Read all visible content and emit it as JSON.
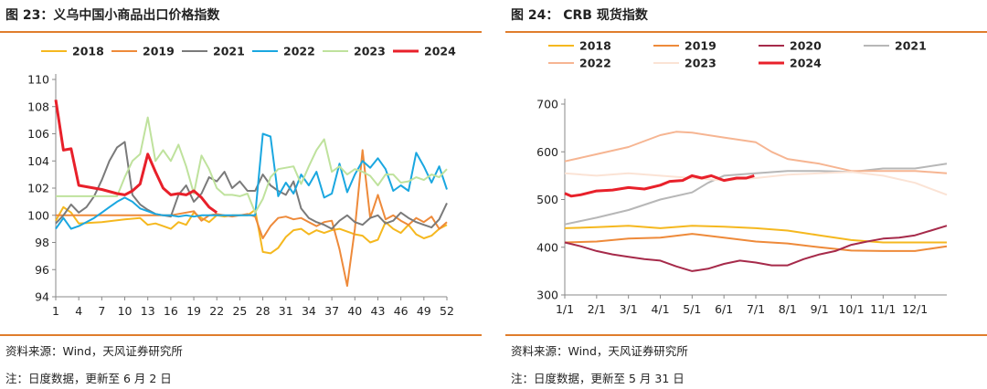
{
  "charts": [
    {
      "title": "图 23：义乌中国小商品出口价格指数",
      "source": "资料来源：Wind，天风证券研究所",
      "note": "注：日度数据，更新至 6 月 2 日"
    },
    {
      "title": "图 24： CRB 现货指数",
      "source": "资料来源：Wind，天风证券研究所",
      "note": "注：日度数据，更新至 5 月 31 日"
    }
  ],
  "chart_data": [
    {
      "type": "line",
      "title": "图 23：义乌中国小商品出口价格指数",
      "x_ticks": [
        1,
        4,
        7,
        10,
        13,
        16,
        19,
        22,
        25,
        28,
        31,
        34,
        37,
        40,
        43,
        46,
        49,
        52
      ],
      "xlim": [
        1,
        52
      ],
      "ylim": [
        94,
        110
      ],
      "y_ticks": [
        94,
        96,
        98,
        100,
        102,
        104,
        106,
        108,
        110
      ],
      "legend": "top",
      "grid": false,
      "series": [
        {
          "name": "2018",
          "color": "#f5b81f",
          "x": [
            1,
            2,
            3,
            4,
            7,
            10,
            12,
            13,
            14,
            15,
            16,
            17,
            18,
            19,
            20,
            21,
            22,
            23,
            24,
            25,
            26,
            27,
            28,
            29,
            30,
            31,
            32,
            33,
            34,
            35,
            36,
            37,
            38,
            39,
            40,
            41,
            42,
            43,
            44,
            45,
            46,
            47,
            48,
            49,
            50,
            51,
            52
          ],
          "y": [
            99.6,
            100.6,
            100.2,
            99.4,
            99.5,
            99.7,
            99.8,
            99.3,
            99.4,
            99.2,
            99.0,
            99.5,
            99.3,
            100.2,
            99.8,
            99.5,
            100.0,
            99.9,
            100.0,
            100.0,
            100.0,
            100.4,
            97.3,
            97.2,
            97.6,
            98.4,
            98.9,
            99.0,
            98.6,
            98.9,
            98.7,
            98.9,
            99.0,
            98.8,
            98.6,
            98.5,
            98.0,
            98.2,
            99.5,
            99.0,
            98.7,
            99.3,
            98.6,
            98.3,
            98.5,
            99.0,
            99.3
          ]
        },
        {
          "name": "2019",
          "color": "#ee8a3a",
          "x": [
            1,
            4,
            7,
            10,
            13,
            16,
            19,
            20,
            21,
            22,
            23,
            24,
            25,
            26,
            27,
            28,
            29,
            30,
            31,
            32,
            33,
            34,
            35,
            36,
            37,
            38,
            39,
            40,
            41,
            42,
            43,
            44,
            45,
            46,
            47,
            48,
            49,
            50,
            51,
            52
          ],
          "y": [
            100.0,
            100.0,
            100.0,
            100.0,
            100.0,
            100.0,
            100.3,
            99.6,
            100.0,
            100.1,
            100.0,
            99.9,
            100.0,
            100.1,
            99.9,
            98.3,
            99.2,
            99.8,
            99.9,
            99.7,
            99.8,
            99.5,
            99.2,
            99.5,
            99.6,
            97.5,
            94.8,
            99.0,
            104.8,
            99.8,
            101.5,
            99.7,
            100.0,
            99.6,
            99.3,
            99.8,
            99.5,
            99.9,
            99.0,
            99.5
          ]
        },
        {
          "name": "2021",
          "color": "#7a7a7a",
          "x": [
            1,
            2,
            3,
            4,
            5,
            6,
            7,
            8,
            9,
            10,
            11,
            12,
            13,
            14,
            15,
            16,
            17,
            18,
            19,
            20,
            21,
            22,
            23,
            24,
            25,
            26,
            27,
            28,
            29,
            30,
            31,
            32,
            33,
            34,
            35,
            36,
            37,
            38,
            39,
            40,
            41,
            42,
            43,
            44,
            45,
            46,
            47,
            48,
            49,
            50,
            51,
            52
          ],
          "y": [
            99.4,
            100.0,
            100.8,
            100.2,
            100.6,
            101.4,
            102.6,
            104.0,
            105.0,
            105.4,
            101.5,
            100.8,
            100.4,
            100.1,
            100.0,
            99.9,
            101.5,
            102.2,
            101.0,
            101.6,
            102.8,
            102.5,
            103.2,
            102.0,
            102.5,
            101.8,
            101.8,
            103.0,
            102.2,
            101.8,
            101.5,
            102.5,
            100.5,
            99.8,
            99.5,
            99.3,
            99.0,
            99.6,
            100.0,
            99.5,
            99.3,
            99.8,
            100.0,
            99.4,
            99.6,
            100.2,
            99.8,
            99.5,
            99.3,
            99.1,
            99.7,
            100.9
          ]
        },
        {
          "name": "2022",
          "color": "#1aa7e0",
          "x": [
            1,
            2,
            3,
            4,
            5,
            6,
            7,
            8,
            9,
            10,
            11,
            12,
            13,
            14,
            15,
            16,
            17,
            18,
            19,
            20,
            21,
            22,
            23,
            24,
            25,
            26,
            27,
            28,
            29,
            30,
            31,
            32,
            33,
            34,
            35,
            36,
            37,
            38,
            39,
            40,
            41,
            42,
            43,
            44,
            45,
            46,
            47,
            48,
            49,
            50,
            51,
            52
          ],
          "y": [
            99.0,
            99.8,
            99.0,
            99.2,
            99.5,
            99.8,
            100.2,
            100.6,
            101.0,
            101.3,
            101.0,
            100.5,
            100.3,
            100.1,
            100.0,
            100.0,
            99.9,
            100.0,
            99.9,
            100.0,
            100.0,
            100.0,
            100.0,
            100.0,
            100.0,
            100.0,
            100.0,
            106.0,
            105.8,
            101.4,
            102.4,
            101.6,
            103.0,
            102.2,
            103.2,
            101.3,
            101.6,
            103.8,
            101.7,
            103.0,
            104.0,
            103.5,
            104.2,
            103.4,
            101.8,
            102.2,
            101.8,
            104.6,
            103.6,
            102.4,
            103.6,
            101.9
          ]
        },
        {
          "name": "2023",
          "color": "#bfe29d",
          "x": [
            1,
            2,
            3,
            4,
            5,
            6,
            7,
            8,
            9,
            10,
            11,
            12,
            13,
            14,
            15,
            16,
            17,
            18,
            19,
            20,
            21,
            22,
            23,
            24,
            25,
            26,
            27,
            28,
            29,
            30,
            31,
            32,
            33,
            34,
            35,
            36,
            37,
            38,
            39,
            40,
            41,
            42,
            43,
            44,
            45,
            46,
            47,
            48,
            49,
            50,
            51,
            52
          ],
          "y": [
            101.4,
            101.4,
            101.4,
            101.4,
            101.4,
            101.4,
            101.4,
            101.4,
            101.4,
            102.8,
            104.0,
            104.5,
            107.2,
            104.0,
            104.8,
            104.0,
            105.2,
            103.6,
            101.6,
            104.4,
            103.4,
            102.0,
            101.5,
            101.5,
            101.4,
            101.6,
            100.2,
            101.2,
            102.8,
            103.4,
            103.5,
            103.6,
            102.3,
            103.6,
            104.8,
            105.6,
            103.2,
            103.6,
            103.0,
            103.4,
            103.2,
            102.9,
            102.2,
            103.0,
            103.0,
            102.4,
            102.5,
            102.8,
            102.6,
            103.0,
            102.8,
            103.4
          ]
        },
        {
          "name": "2024",
          "color": "#e8202a",
          "x": [
            1,
            2,
            3,
            4,
            5,
            7,
            9,
            10,
            11,
            12,
            13,
            14,
            15,
            16,
            17,
            18,
            19,
            20,
            21,
            22
          ],
          "y": [
            108.5,
            104.8,
            104.9,
            102.2,
            102.1,
            101.9,
            101.6,
            101.5,
            101.8,
            102.3,
            104.5,
            103.2,
            102.0,
            101.5,
            101.6,
            101.5,
            101.8,
            101.3,
            100.6,
            100.2
          ]
        }
      ]
    },
    {
      "type": "line",
      "title": "图 24： CRB 现货指数",
      "x_ticks": [
        "1/1",
        "2/1",
        "3/1",
        "4/1",
        "5/1",
        "6/1",
        "7/1",
        "8/1",
        "9/1",
        "10/1",
        "11/1",
        "12/1"
      ],
      "xlim": [
        0,
        12
      ],
      "ylim": [
        300,
        700
      ],
      "y_ticks": [
        300,
        400,
        500,
        600,
        700
      ],
      "legend": "top",
      "grid": false,
      "series": [
        {
          "name": "2018",
          "color": "#f5b81f",
          "x": [
            0,
            1,
            2,
            3,
            4,
            5,
            6,
            7,
            8,
            9,
            10,
            11,
            12
          ],
          "y": [
            440,
            442,
            445,
            440,
            445,
            443,
            440,
            435,
            425,
            415,
            410,
            410,
            410
          ]
        },
        {
          "name": "2019",
          "color": "#ee8a3a",
          "x": [
            0,
            1,
            2,
            3,
            4,
            5,
            6,
            7,
            8,
            9,
            10,
            11,
            12
          ],
          "y": [
            410,
            412,
            418,
            420,
            428,
            420,
            412,
            408,
            400,
            393,
            392,
            392,
            402
          ]
        },
        {
          "name": "2020",
          "color": "#a62a4a",
          "x": [
            0,
            0.5,
            1,
            1.5,
            2,
            2.5,
            3,
            3.5,
            4,
            4.5,
            5,
            5.5,
            6,
            6.5,
            7,
            7.5,
            8,
            8.5,
            9,
            9.5,
            10,
            10.5,
            11,
            11.5,
            12
          ],
          "y": [
            410,
            402,
            392,
            385,
            380,
            375,
            372,
            360,
            350,
            355,
            365,
            372,
            368,
            362,
            362,
            375,
            385,
            392,
            405,
            412,
            418,
            420,
            425,
            435,
            445
          ]
        },
        {
          "name": "2021",
          "color": "#b7b7b7",
          "x": [
            0,
            1,
            2,
            3,
            4,
            4.5,
            5,
            6,
            7,
            8,
            9,
            10,
            11,
            12
          ],
          "y": [
            448,
            462,
            478,
            500,
            515,
            535,
            550,
            555,
            560,
            560,
            558,
            565,
            565,
            575
          ]
        },
        {
          "name": "2022",
          "color": "#f6b592",
          "x": [
            0,
            1,
            2,
            3,
            3.5,
            4,
            5,
            6,
            6.5,
            7,
            8,
            9,
            10,
            11,
            12
          ],
          "y": [
            580,
            595,
            610,
            635,
            642,
            640,
            630,
            620,
            600,
            585,
            575,
            560,
            560,
            560,
            555
          ]
        },
        {
          "name": "2023",
          "color": "#fbe3d5",
          "x": [
            0,
            1,
            2,
            3,
            4,
            5,
            6,
            7,
            8,
            9,
            10,
            11,
            12
          ],
          "y": [
            555,
            550,
            555,
            550,
            545,
            540,
            545,
            552,
            555,
            558,
            550,
            535,
            510
          ]
        },
        {
          "name": "2024",
          "color": "#e8202a",
          "x": [
            0,
            0.2,
            0.5,
            1,
            1.5,
            2,
            2.5,
            3,
            3.3,
            3.7,
            4,
            4.3,
            4.6,
            5,
            5.4,
            5.7,
            5.95
          ],
          "y": [
            513,
            507,
            510,
            518,
            520,
            525,
            522,
            530,
            538,
            540,
            550,
            545,
            550,
            540,
            545,
            545,
            550
          ]
        }
      ]
    }
  ]
}
